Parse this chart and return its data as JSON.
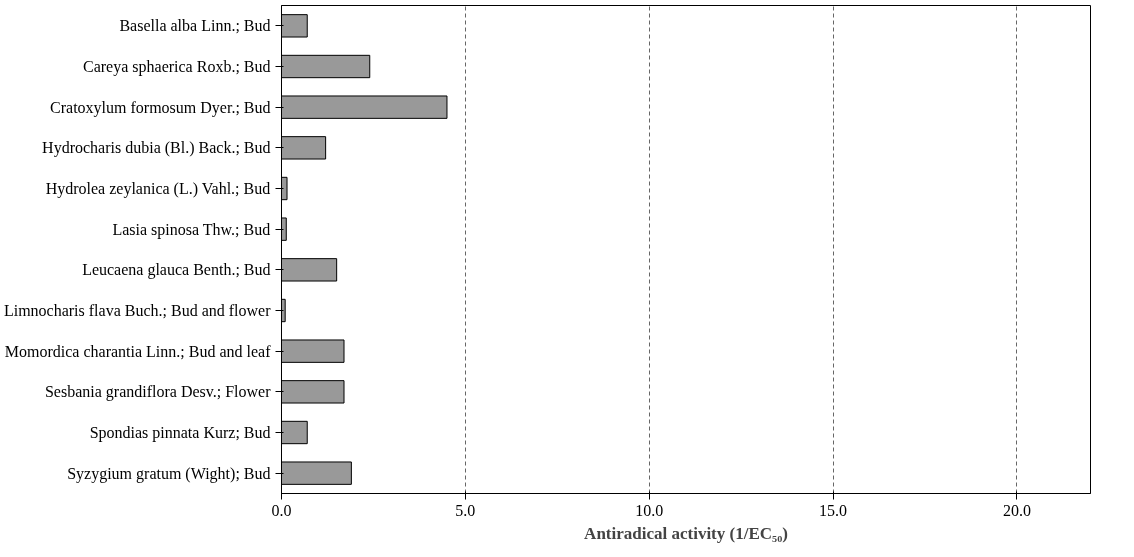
{
  "chart_data": {
    "type": "bar",
    "orientation": "horizontal",
    "xlabel": "Antiradical activity (1/EC₅₀)",
    "categories": [
      "Basella alba Linn.; Bud",
      "Careya sphaerica Roxb.; Bud",
      "Cratoxylum formosum Dyer.; Bud",
      "Hydrocharis dubia (Bl.) Back.; Bud",
      "Hydrolea zeylanica (L.) Vahl.; Bud",
      "Lasia spinosa Thw.; Bud",
      "Leucaena glauca Benth.; Bud",
      "Limnocharis flava Buch.; Bud and flower",
      "Momordica charantia Linn.; Bud and leaf",
      "Sesbania grandiflora Desv.; Flower",
      "Spondias pinnata Kurz; Bud",
      "Syzygium gratum (Wight); Bud"
    ],
    "values": [
      0.7,
      2.4,
      4.5,
      1.2,
      0.15,
      0.13,
      1.5,
      0.1,
      1.7,
      1.7,
      0.7,
      1.9
    ],
    "color": "#999999",
    "xlim": [
      0,
      22
    ],
    "xticks": [
      {
        "value": 0,
        "label": "0.0"
      },
      {
        "value": 5,
        "label": "5.0"
      },
      {
        "value": 10,
        "label": "10.0"
      },
      {
        "value": 15,
        "label": "15.0"
      },
      {
        "value": 20,
        "label": "20.0"
      }
    ],
    "grid": "x"
  }
}
